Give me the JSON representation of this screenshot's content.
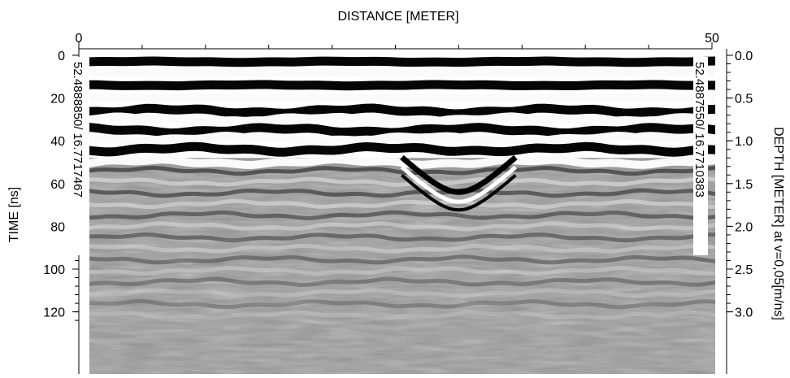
{
  "chart_data": {
    "type": "heatmap",
    "title": "",
    "xlabel": "DISTANCE [METER]",
    "ylabel": "TIME [ns]",
    "y2label": "DEPTH [METER] at v=0,05[m/ns]",
    "xlim": [
      0,
      50
    ],
    "ylim": [
      0,
      125
    ],
    "y2lim": [
      0,
      3.1
    ],
    "x_ticks": [
      0,
      50
    ],
    "y_ticks": [
      0,
      20,
      40,
      60,
      80,
      100,
      120
    ],
    "y2_ticks": [
      "0.0",
      "0.5",
      "1.0",
      "1.5",
      "2.0",
      "2.5",
      "3.0"
    ],
    "colormap": "grayscale",
    "grid": false,
    "side_labels": {
      "left": "52.4888850/ 16.7717467",
      "right": "52.4887550/ 16.7710383"
    },
    "reflector_bands": [
      {
        "time_ns": 3,
        "polarity": "dark"
      },
      {
        "time_ns": 8,
        "polarity": "light"
      },
      {
        "time_ns": 14,
        "polarity": "dark"
      },
      {
        "time_ns": 20,
        "polarity": "light"
      },
      {
        "time_ns": 26,
        "polarity": "dark"
      },
      {
        "time_ns": 30,
        "polarity": "light"
      },
      {
        "time_ns": 35,
        "polarity": "dark"
      },
      {
        "time_ns": 39,
        "polarity": "light"
      },
      {
        "time_ns": 44,
        "polarity": "dark"
      },
      {
        "time_ns": 50,
        "polarity": "light"
      }
    ],
    "anomaly": {
      "type": "hyperbola",
      "apex_distance_m": 30,
      "apex_time_ns": 64
    }
  }
}
